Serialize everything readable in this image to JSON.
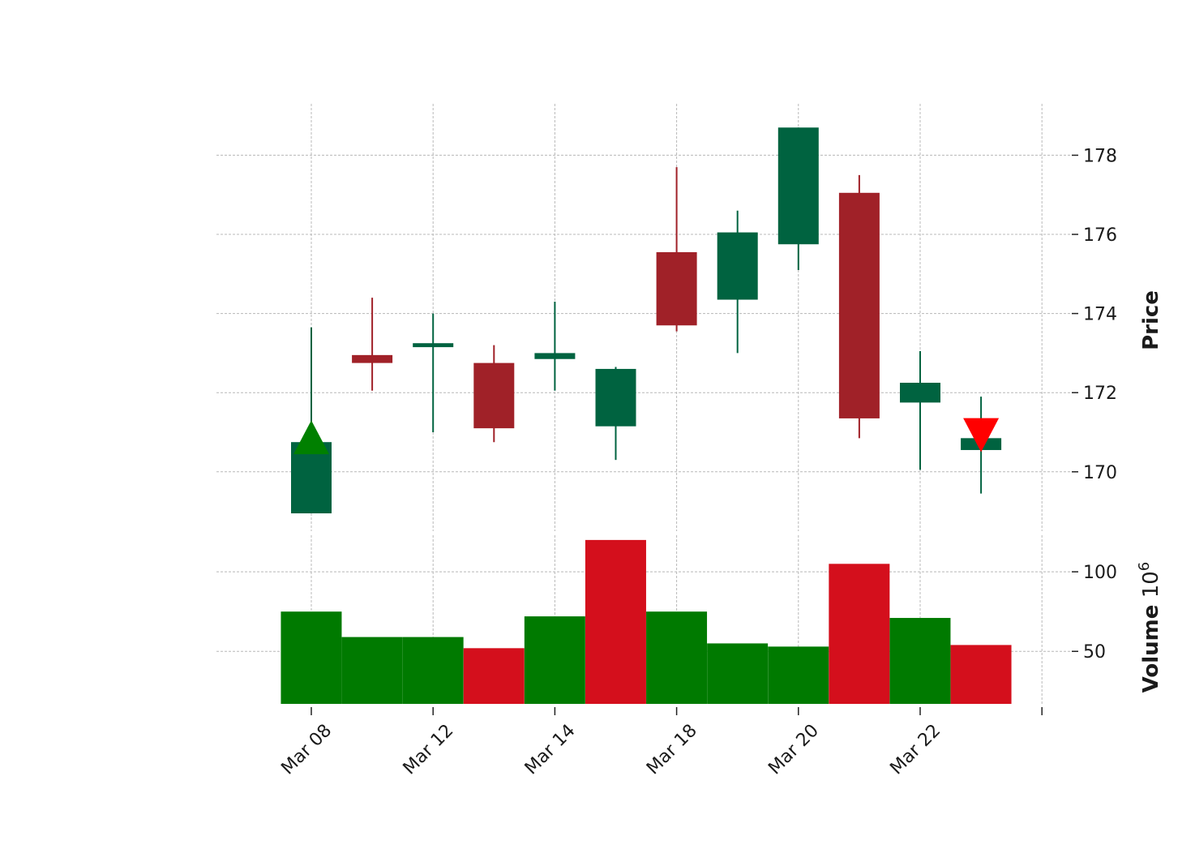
{
  "chart_data": {
    "type": "candlestick",
    "title": "",
    "x_ticks": [
      {
        "index": 0,
        "label": "Mar 08"
      },
      {
        "index": 2,
        "label": "Mar 12"
      },
      {
        "index": 4,
        "label": "Mar 14"
      },
      {
        "index": 6,
        "label": "Mar 18"
      },
      {
        "index": 8,
        "label": "Mar 20"
      },
      {
        "index": 10,
        "label": "Mar 22"
      }
    ],
    "price_panel": {
      "ylabel": "Price",
      "ylim": [
        168.5,
        179.3
      ],
      "yticks": [
        170,
        172,
        174,
        176,
        178
      ],
      "candles": [
        {
          "open": 168.95,
          "high": 173.65,
          "low": 168.95,
          "close": 170.75
        },
        {
          "open": 172.95,
          "high": 174.4,
          "low": 172.05,
          "close": 172.75
        },
        {
          "open": 173.15,
          "high": 174.0,
          "low": 171.0,
          "close": 173.25
        },
        {
          "open": 172.75,
          "high": 173.2,
          "low": 170.75,
          "close": 171.1
        },
        {
          "open": 172.85,
          "high": 174.3,
          "low": 172.05,
          "close": 173.0
        },
        {
          "open": 171.15,
          "high": 172.65,
          "low": 170.3,
          "close": 172.6
        },
        {
          "open": 175.55,
          "high": 177.7,
          "low": 173.55,
          "close": 173.7
        },
        {
          "open": 174.35,
          "high": 176.6,
          "low": 173.0,
          "close": 176.05
        },
        {
          "open": 175.75,
          "high": 178.7,
          "low": 175.1,
          "close": 178.7
        },
        {
          "open": 177.05,
          "high": 177.5,
          "low": 170.85,
          "close": 171.35
        },
        {
          "open": 171.75,
          "high": 173.05,
          "low": 170.05,
          "close": 172.25
        },
        {
          "open": 170.55,
          "high": 171.9,
          "low": 169.45,
          "close": 170.85
        }
      ],
      "markers": [
        {
          "index": 0,
          "price": 170.85,
          "shape": "triangle-up",
          "color": "#008000"
        },
        {
          "index": 11,
          "price": 170.95,
          "shape": "triangle-down",
          "color": "#ff0000"
        }
      ]
    },
    "volume_panel": {
      "ylabel": "Volume",
      "scale_label": "10^6",
      "scale_base": "10",
      "scale_exp": "6",
      "ylim": [
        17,
        123
      ],
      "yticks": [
        50,
        100
      ],
      "values": [
        75,
        59,
        59,
        52,
        72,
        120,
        75,
        55,
        53,
        105,
        71,
        54
      ],
      "colors": [
        "up",
        "up",
        "up",
        "down",
        "up",
        "down",
        "up",
        "up",
        "up",
        "down",
        "up",
        "down"
      ]
    },
    "colors": {
      "candle_up": "#006340",
      "candle_down": "#a02128",
      "volume_up": "#007a00",
      "volume_down": "#d40f1c"
    }
  }
}
